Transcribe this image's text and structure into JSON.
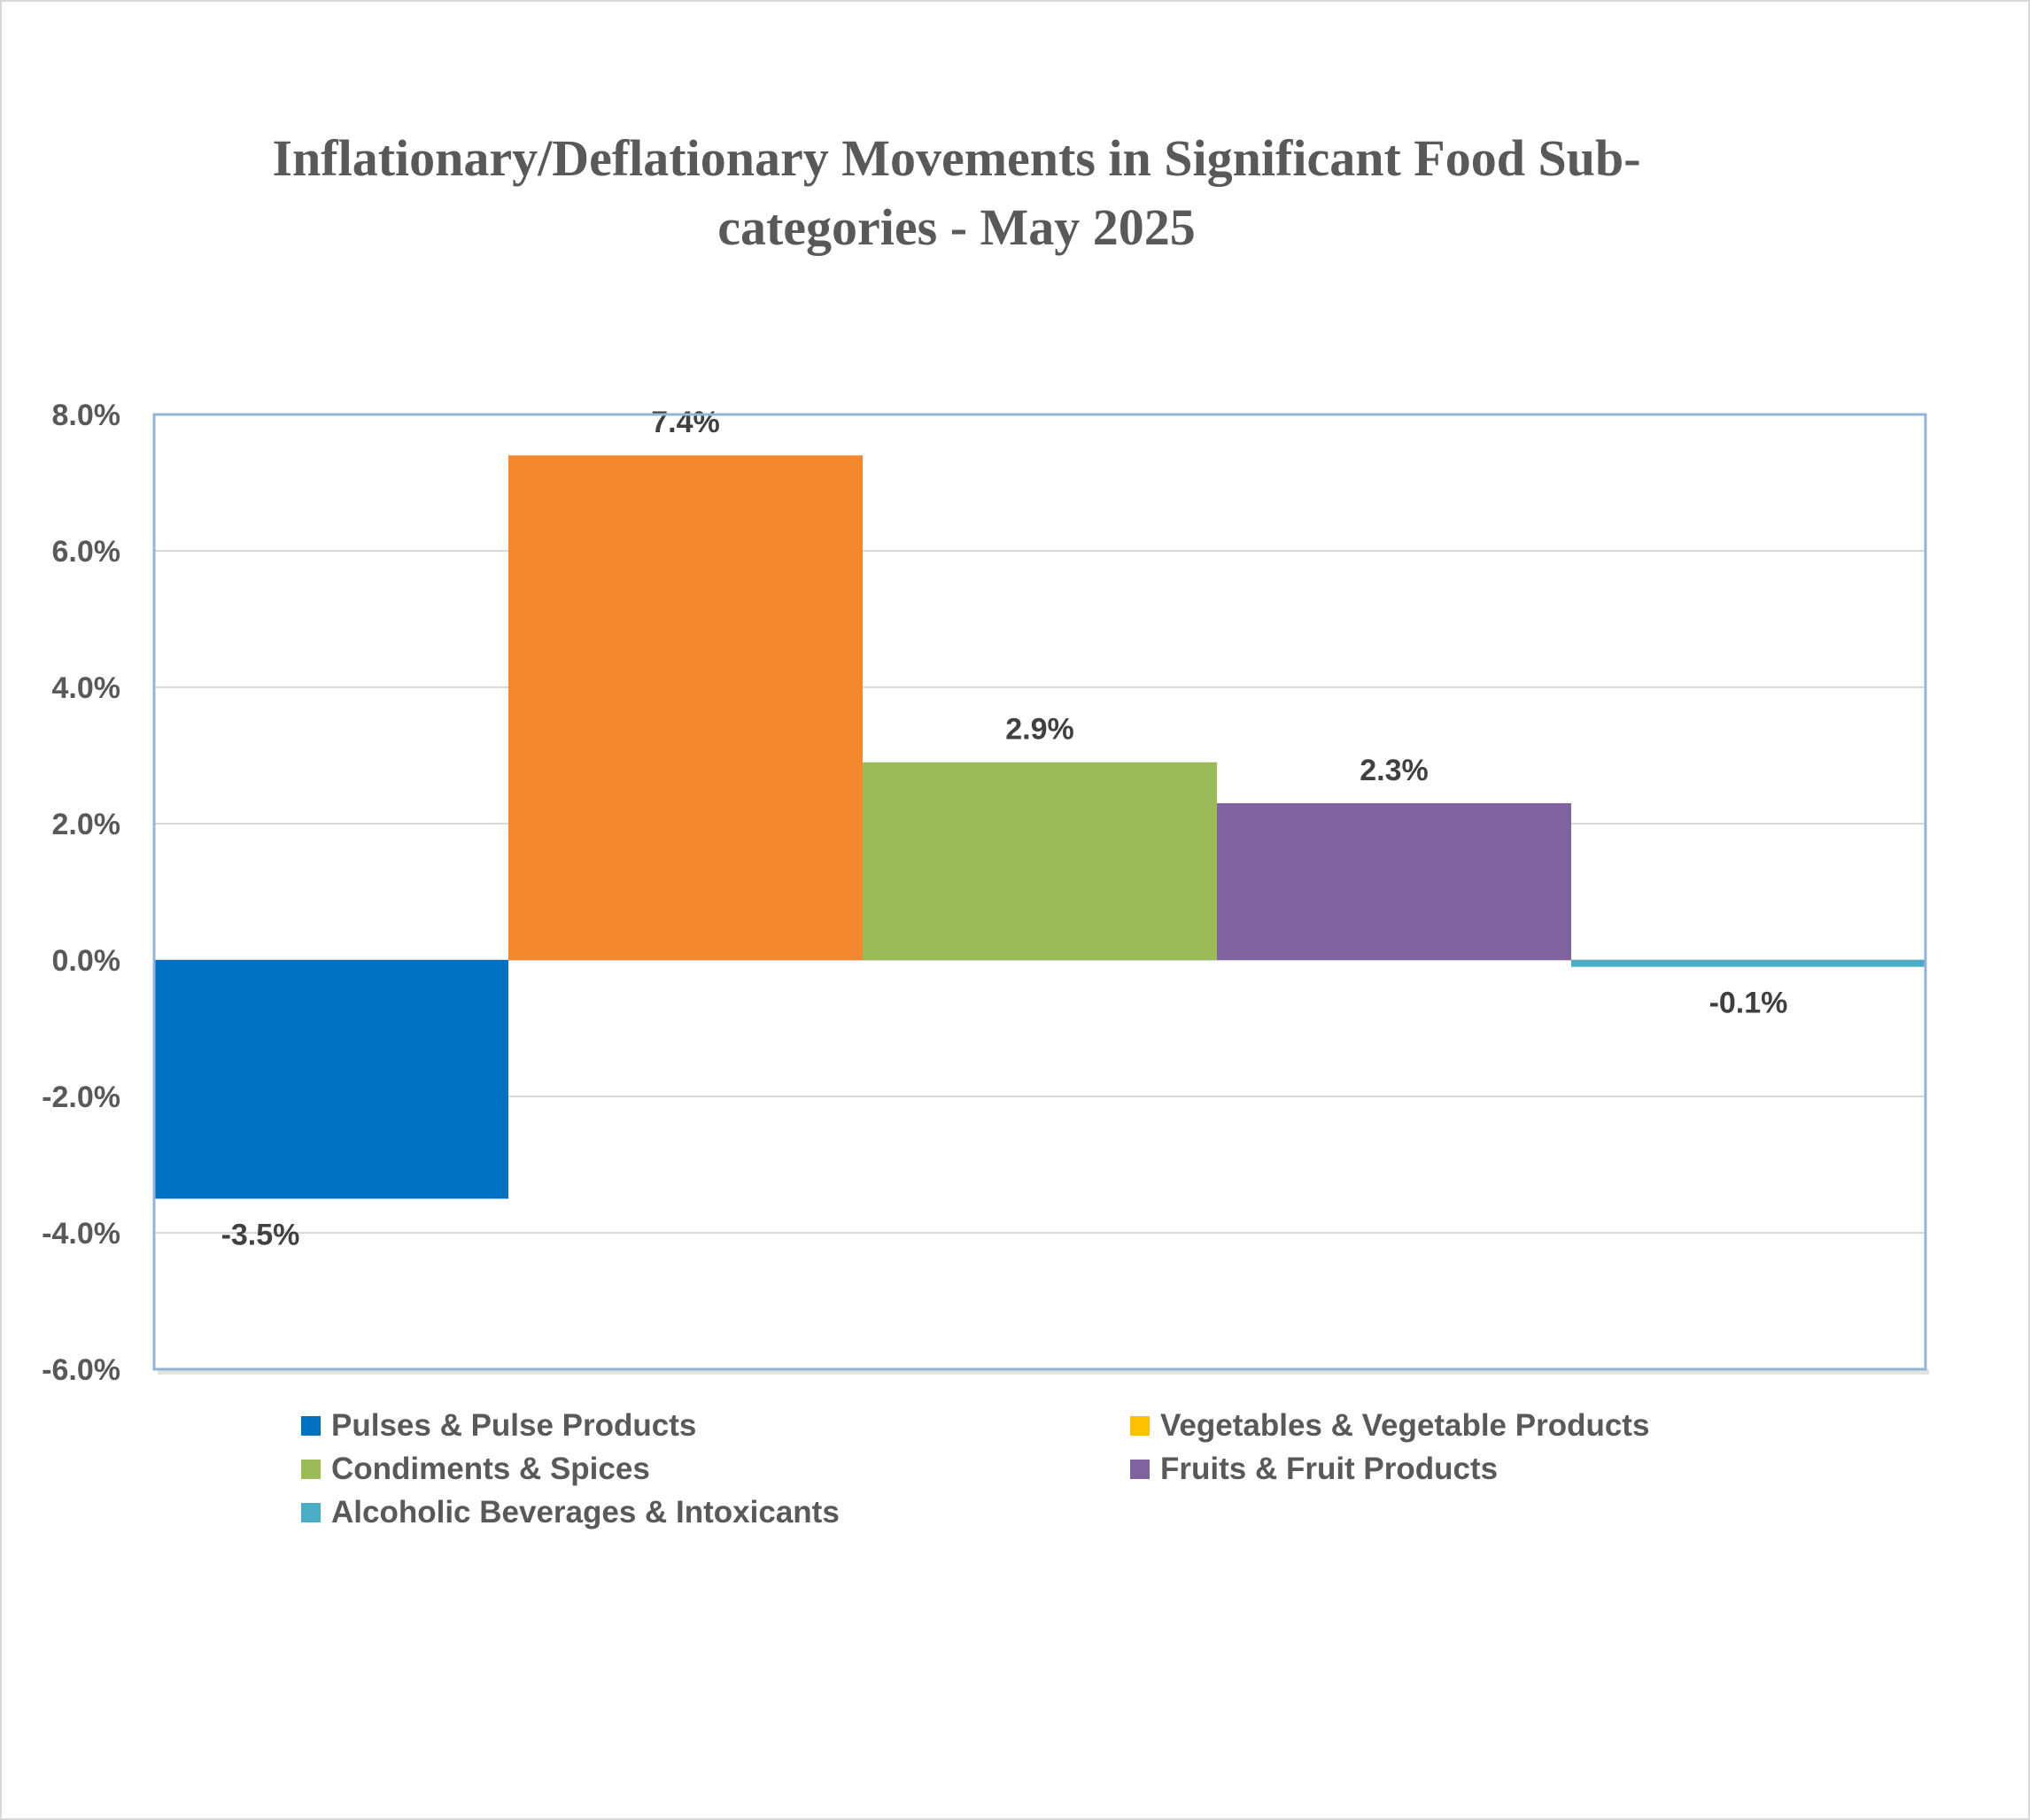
{
  "chart_data": {
    "type": "bar",
    "title_lines": [
      "Inflationary/Deflationary Movements in Significant Food Sub-",
      "categories - May 2025"
    ],
    "categories": [
      "Pulses & Pulse Products",
      "Vegetables & Vegetable Products",
      "Condiments & Spices",
      "Fruits & Fruit Products",
      "Alcoholic Beverages & Intoxicants"
    ],
    "values": [
      -3.5,
      7.4,
      2.9,
      2.3,
      -0.1
    ],
    "data_labels": [
      "-3.5%",
      "7.4%",
      "2.9%",
      "2.3%",
      "-0.1%"
    ],
    "colors": [
      "#0070C0",
      "#F4882E",
      "#9BBB59",
      "#8064A2",
      "#4BACC6"
    ],
    "legend_colors": [
      "#0070C0",
      "#FFC000",
      "#9BBB59",
      "#8064A2",
      "#4BACC6"
    ],
    "y_ticks": [
      "8.0%",
      "6.0%",
      "4.0%",
      "2.0%",
      "0.0%",
      "-2.0%",
      "-4.0%",
      "-6.0%"
    ],
    "ylim": [
      -6,
      8
    ],
    "grid": true,
    "legend_position": "bottom",
    "xlabel": "",
    "ylabel": ""
  }
}
